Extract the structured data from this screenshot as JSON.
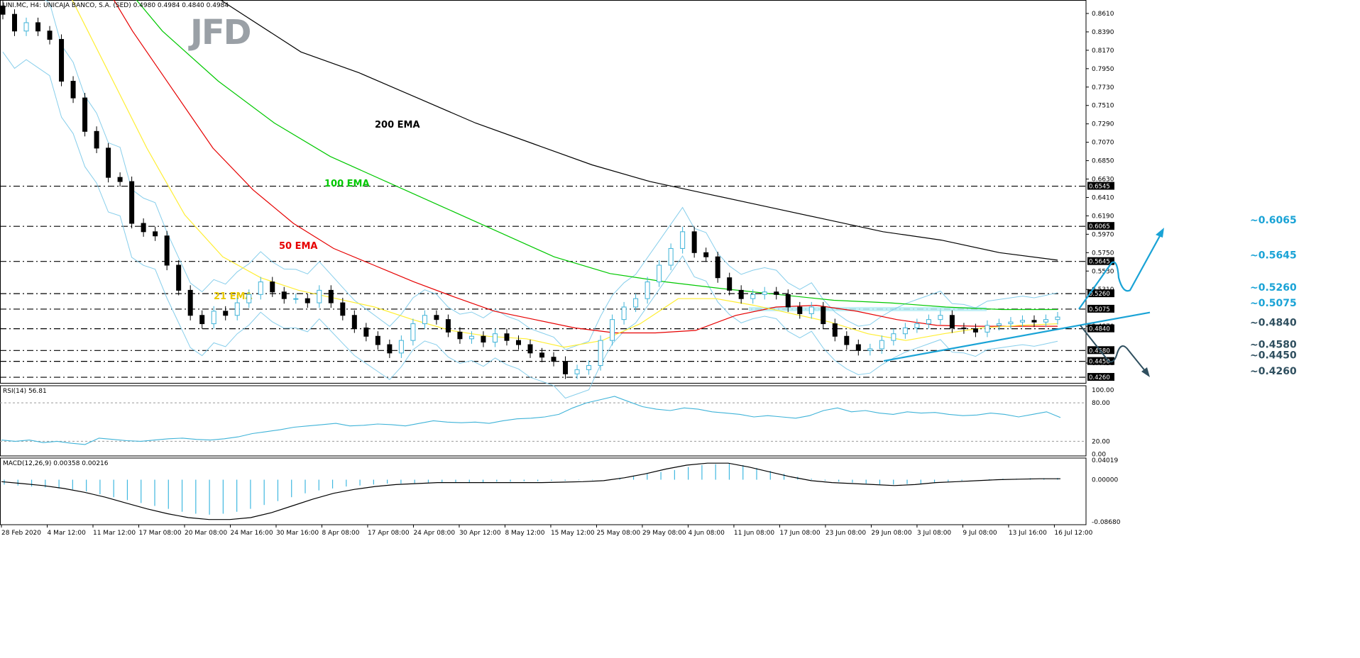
{
  "header": {
    "symbol_line": "UNI.MC, H4:  UNICAJA BANCO, S.A. (SED)  0.4980 0.4984 0.4840 0.4984",
    "logo": "JFD"
  },
  "colors": {
    "ema200": "#000000",
    "ema100": "#00c800",
    "ema50": "#e60000",
    "ema21": "#ffee33",
    "bollinger": "#87ceeb",
    "rsi": "#3fb3d8",
    "macd_hist": "#40b8e0",
    "macd_signal": "#000000",
    "bull_body": "#ffffff",
    "bull_border": "#3fb3d8",
    "bear_body": "#000000",
    "level_line": "#000000",
    "annotation": "#1aa3d6",
    "trend_line": "#1aa3d6",
    "down_arrow": "#2f4f5f",
    "resistance_zone": "#b6ecf5"
  },
  "chart_data": [
    {
      "type": "candlestick",
      "title": "UNI.MC, H4:  UNICAJA BANCO, S.A. (SED)",
      "x_tick_labels": [
        "28 Feb 2020",
        "4 Mar 12:00",
        "11 Mar 12:00",
        "17 Mar 08:00",
        "20 Mar 08:00",
        "24 Mar 16:00",
        "30 Mar 16:00",
        "8 Apr 08:00",
        "17 Apr 08:00",
        "24 Apr 08:00",
        "30 Apr 12:00",
        "8 May 12:00",
        "15 May 12:00",
        "25 May 08:00",
        "29 May 08:00",
        "4 Jun 08:00",
        "11 Jun 08:00",
        "17 Jun 08:00",
        "23 Jun 08:00",
        "29 Jun 08:00",
        "3 Jul 08:00",
        "9 Jul 08:00",
        "13 Jul 16:00",
        "16 Jul 12:00"
      ],
      "y_tick_labels": [
        "0.8610",
        "0.8390",
        "0.8170",
        "0.7950",
        "0.7730",
        "0.7510",
        "0.7290",
        "0.7070",
        "0.6850",
        "0.6630",
        "0.6410",
        "0.6190",
        "0.5970",
        "0.5750",
        "0.5530",
        "0.5310",
        "0.4870",
        "0.4430"
      ],
      "ylim": [
        0.4213,
        0.8717
      ],
      "close_series": [
        0.86,
        0.84,
        0.85,
        0.84,
        0.83,
        0.78,
        0.76,
        0.72,
        0.7,
        0.665,
        0.66,
        0.61,
        0.6,
        0.595,
        0.56,
        0.53,
        0.5,
        0.49,
        0.505,
        0.5,
        0.515,
        0.525,
        0.54,
        0.528,
        0.52,
        0.52,
        0.515,
        0.53,
        0.515,
        0.5,
        0.485,
        0.475,
        0.465,
        0.455,
        0.47,
        0.49,
        0.5,
        0.495,
        0.48,
        0.472,
        0.475,
        0.468,
        0.478,
        0.47,
        0.465,
        0.455,
        0.45,
        0.445,
        0.43,
        0.435,
        0.44,
        0.47,
        0.495,
        0.51,
        0.52,
        0.54,
        0.56,
        0.58,
        0.6,
        0.575,
        0.57,
        0.545,
        0.53,
        0.52,
        0.525,
        0.528,
        0.525,
        0.51,
        0.502,
        0.51,
        0.49,
        0.475,
        0.465,
        0.458,
        0.46,
        0.47,
        0.478,
        0.485,
        0.49,
        0.495,
        0.5,
        0.485,
        0.484,
        0.48,
        0.488,
        0.49,
        0.492,
        0.494,
        0.492,
        0.495,
        0.498
      ],
      "indicators": [
        "200 EMA",
        "100 EMA",
        "50 EMA",
        "21 EMA"
      ],
      "ema200": [
        0.905,
        0.86,
        0.815,
        0.79,
        0.76,
        0.73,
        0.705,
        0.68,
        0.66,
        0.645,
        0.63,
        0.615,
        0.6,
        0.59,
        0.575,
        0.566
      ],
      "ema100": [
        0.92,
        0.84,
        0.78,
        0.73,
        0.69,
        0.66,
        0.63,
        0.6,
        0.57,
        0.55,
        0.54,
        0.532,
        0.525,
        0.518,
        0.515,
        0.51,
        0.507,
        0.507
      ],
      "ema50": [
        0.92,
        0.84,
        0.77,
        0.7,
        0.65,
        0.61,
        0.58,
        0.56,
        0.54,
        0.522,
        0.505,
        0.495,
        0.485,
        0.479,
        0.479,
        0.482,
        0.5,
        0.51,
        0.512,
        0.505,
        0.495,
        0.488,
        0.487,
        0.487,
        0.487
      ],
      "ema21": [
        0.88,
        0.79,
        0.7,
        0.62,
        0.57,
        0.545,
        0.53,
        0.52,
        0.51,
        0.495,
        0.482,
        0.475,
        0.472,
        0.462,
        0.47,
        0.49,
        0.52,
        0.52,
        0.512,
        0.502,
        0.492,
        0.478,
        0.47,
        0.478,
        0.485,
        0.488,
        0.49
      ],
      "levels": [
        0.6545,
        0.6065,
        0.5645,
        0.526,
        0.5075,
        0.484,
        0.458,
        0.445,
        0.426
      ],
      "annotations": [
        "~0.6065",
        "~0.5645",
        "~0.5260",
        "~0.5075",
        "~0.4840",
        "~0.4580",
        "~0.4450",
        "~0.4260"
      ],
      "level_axis_labels": [
        "0.6545",
        "0.6065",
        "0.5645",
        "0.5260",
        "0.5075",
        "0.4840",
        "0.4580",
        "0.4450",
        "0.4260"
      ]
    },
    {
      "type": "line",
      "title": "RSI(14) 56.81",
      "ylim": [
        0,
        100
      ],
      "y_tick_labels": [
        "100.00",
        "80.00",
        "20.00",
        "0.00"
      ],
      "values": [
        22,
        20,
        22,
        18,
        20,
        17,
        15,
        25,
        23,
        21,
        20,
        22,
        24,
        25,
        23,
        22,
        24,
        27,
        32,
        35,
        38,
        42,
        44,
        46,
        48,
        44,
        45,
        47,
        46,
        44,
        48,
        52,
        50,
        49,
        50,
        48,
        52,
        55,
        56,
        58,
        62,
        72,
        80,
        85,
        90,
        82,
        74,
        70,
        68,
        72,
        70,
        66,
        64,
        62,
        58,
        60,
        58,
        56,
        60,
        68,
        72,
        66,
        68,
        64,
        62,
        66,
        64,
        65,
        62,
        60,
        61,
        64,
        62,
        58,
        62,
        66,
        57
      ]
    },
    {
      "type": "bar",
      "title": "MACD(12,26,9) 0.00358 0.00216",
      "ylim": [
        -0.0868,
        0.04019
      ],
      "y_tick_labels": [
        "0.04019",
        "0.00000",
        "-0.08680"
      ],
      "histogram": [
        -0.01,
        -0.012,
        -0.014,
        -0.016,
        -0.018,
        -0.02,
        -0.024,
        -0.03,
        -0.036,
        -0.042,
        -0.048,
        -0.054,
        -0.06,
        -0.066,
        -0.07,
        -0.072,
        -0.07,
        -0.066,
        -0.06,
        -0.052,
        -0.044,
        -0.036,
        -0.028,
        -0.022,
        -0.018,
        -0.014,
        -0.012,
        -0.01,
        -0.008,
        -0.008,
        -0.007,
        -0.006,
        -0.006,
        -0.005,
        -0.005,
        -0.005,
        -0.004,
        -0.004,
        -0.003,
        -0.003,
        -0.002,
        -0.002,
        -0.001,
        -0.001,
        0.0,
        0.004,
        0.008,
        0.012,
        0.016,
        0.02,
        0.026,
        0.03,
        0.032,
        0.033,
        0.03,
        0.024,
        0.018,
        0.012,
        0.006,
        0.002,
        -0.002,
        -0.004,
        -0.006,
        -0.008,
        -0.01,
        -0.01,
        -0.009,
        -0.008,
        -0.006,
        -0.004,
        -0.002,
        0.0,
        0.001,
        0.002,
        0.002,
        0.003,
        0.003,
        0.0036
      ],
      "signal": [
        -0.004,
        -0.008,
        -0.012,
        -0.018,
        -0.026,
        -0.036,
        -0.048,
        -0.06,
        -0.07,
        -0.078,
        -0.082,
        -0.082,
        -0.078,
        -0.068,
        -0.054,
        -0.04,
        -0.028,
        -0.02,
        -0.014,
        -0.01,
        -0.008,
        -0.006,
        -0.006,
        -0.006,
        -0.006,
        -0.006,
        -0.006,
        -0.005,
        -0.004,
        -0.002,
        0.004,
        0.012,
        0.022,
        0.03,
        0.034,
        0.034,
        0.026,
        0.016,
        0.006,
        -0.002,
        -0.006,
        -0.008,
        -0.01,
        -0.012,
        -0.01,
        -0.006,
        -0.004,
        -0.002,
        0.0,
        0.001,
        0.002,
        0.002
      ]
    }
  ]
}
